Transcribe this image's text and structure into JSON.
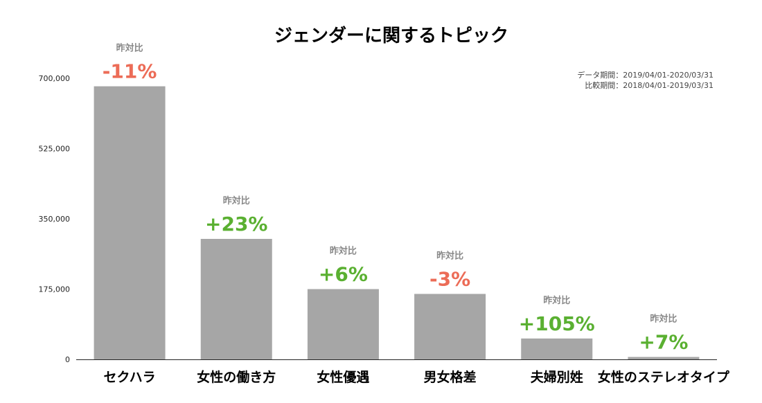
{
  "chart_data": {
    "type": "bar",
    "title": "ジェンダーに関するトピック",
    "period": {
      "data_line": "データ期間：2019/04/01-2020/03/31",
      "compare_line": "比較期間：2018/04/01-2019/03/31"
    },
    "yoy_caption": "昨対比",
    "categories": [
      "セクハラ",
      "女性の働き方",
      "女性優遇",
      "男女格差",
      "夫婦別姓",
      "女性のステレオタイプ"
    ],
    "values": [
      680000,
      300000,
      175000,
      163000,
      52000,
      6000
    ],
    "yoy_changes": [
      "-11%",
      "+23%",
      "+6%",
      "-3%",
      "+105%",
      "+7%"
    ],
    "y_ticks": [
      0,
      175000,
      350000,
      525000,
      700000
    ],
    "y_tick_labels": [
      "0",
      "175,000",
      "350,000",
      "525,000",
      "700,000"
    ],
    "ylim": [
      0,
      700000
    ],
    "grid": false,
    "colors": {
      "bar": "#a6a6a6",
      "increase": "#5ab031",
      "decrease": "#ec6c57",
      "caption": "#888888",
      "axis": "#222222",
      "text": "#000000"
    }
  }
}
